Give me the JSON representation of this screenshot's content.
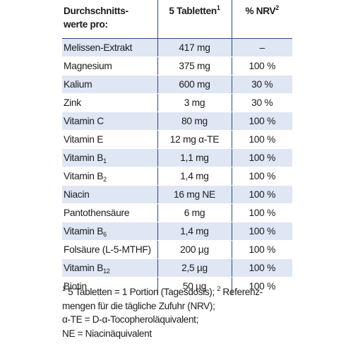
{
  "table": {
    "header": {
      "col1_line1": "Durchschnitts-",
      "col1_line2": "werte pro:",
      "col2": "5 Tabletten",
      "col2_sup": "1",
      "col3": "% NRV",
      "col3_sup": "2"
    },
    "rows": [
      {
        "name": "Melissen-Extrakt",
        "sub": "",
        "amount": "417 mg",
        "nrv": "–"
      },
      {
        "name": "Magnesium",
        "sub": "",
        "amount": "375 mg",
        "nrv": "100 %"
      },
      {
        "name": "Kalium",
        "sub": "",
        "amount": "600 mg",
        "nrv": "30 %"
      },
      {
        "name": "Zink",
        "sub": "",
        "amount": "3 mg",
        "nrv": "30 %"
      },
      {
        "name": "Vitamin C",
        "sub": "",
        "amount": "80 mg",
        "nrv": "100 %"
      },
      {
        "name": "Vitamin E",
        "sub": "",
        "amount": "12 mg α-TE",
        "nrv": "100 %"
      },
      {
        "name": "Vitamin B",
        "sub": "1",
        "amount": "1,1 mg",
        "nrv": "100 %"
      },
      {
        "name": "Vitamin B",
        "sub": "2",
        "amount": "1,4 mg",
        "nrv": "100 %"
      },
      {
        "name": "Niacin",
        "sub": "",
        "amount": "16 mg NE",
        "nrv": "100 %"
      },
      {
        "name": "Pantothensäure",
        "sub": "",
        "amount": "6 mg",
        "nrv": "100 %"
      },
      {
        "name": "Vitamin B",
        "sub": "6",
        "amount": "1,4 mg",
        "nrv": "100 %"
      },
      {
        "name": "Folsäure (L-5-MTHF)",
        "sub": "",
        "amount": "200 µg",
        "nrv": "100 %"
      },
      {
        "name": "Vitamin B",
        "sub": "12",
        "amount": "2,5 µg",
        "nrv": "100 %"
      },
      {
        "name": "Biotin",
        "sub": "",
        "amount": "50 µg",
        "nrv": "100 %"
      }
    ]
  },
  "footnote": {
    "sup1": "1",
    "line1_a": " 5 Tabletten = 1 Portion (Tagesdosis); ",
    "sup2": "2",
    "line1_b": " Referenz-",
    "line2": "mengen für die tägliche Zufuhr (NRV);",
    "line3": "α-TE = D-α-Tocopheroläquivalent;",
    "line4": "NE = Niacinäquivalent"
  },
  "colors": {
    "row_band": "#dfe6f4",
    "rule": "#2a4a86",
    "text": "#1c1c1c"
  }
}
